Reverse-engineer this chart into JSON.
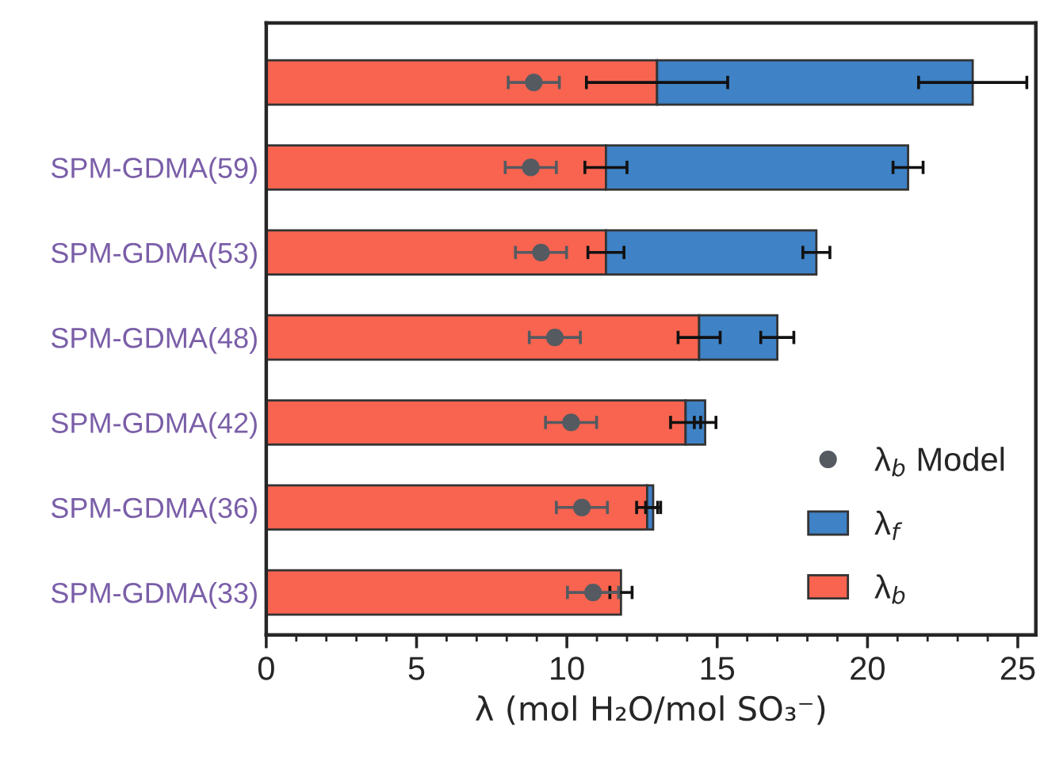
{
  "chart_data": {
    "type": "bar",
    "orientation": "horizontal",
    "stacked": true,
    "categories": [
      null,
      "SPM-GDMA(59)",
      "SPM-GDMA(53)",
      "SPM-GDMA(48)",
      "SPM-GDMA(42)",
      "SPM-GDMA(36)",
      "SPM-GDMA(33)"
    ],
    "series": [
      {
        "name": "λ$_{b}$",
        "color": "#f86450",
        "values": [
          13.0,
          11.3,
          11.3,
          14.4,
          13.95,
          12.67,
          11.8
        ],
        "errors": [
          2.35,
          0.7,
          0.6,
          0.7,
          0.5,
          0.35,
          0.37
        ]
      },
      {
        "name": "λ$_{f}$",
        "color": "#3f82c6",
        "values": [
          10.5,
          10.05,
          7.0,
          2.6,
          0.65,
          0.2,
          null
        ],
        "errors": [
          1.8,
          0.5,
          0.45,
          0.55,
          0.36,
          0.25,
          null
        ]
      },
      {
        "name": "λ$_{b}$ Model",
        "type": "scatter",
        "color": "#555a61",
        "marker": "circle",
        "values": [
          8.9,
          8.8,
          9.14,
          9.6,
          10.14,
          10.5,
          10.87
        ],
        "errors": [
          0.85,
          0.85,
          0.85,
          0.85,
          0.85,
          0.85,
          0.85
        ]
      }
    ],
    "xlabel": "λ (mol H₂O/mol SO₃⁻)",
    "xlim": [
      0,
      25.6
    ],
    "xticks": [
      0,
      5,
      10,
      15,
      20,
      25
    ],
    "grid": false,
    "legend": "bottom right"
  }
}
